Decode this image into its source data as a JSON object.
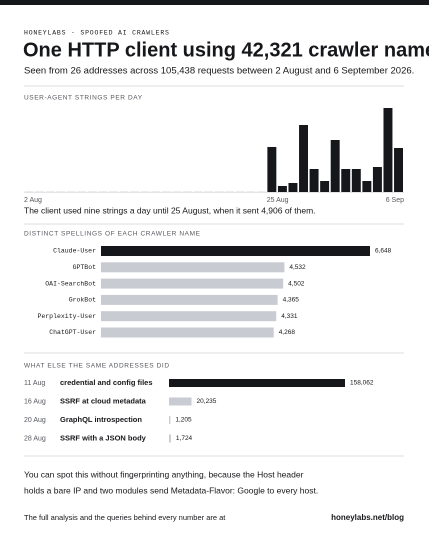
{
  "header": {
    "kicker": "HONEYLABS · SPOOFED AI CRAWLERS",
    "title": "One HTTP client using 42,321 crawler names",
    "subtitle": "Seen from 26 addresses across 105,438 requests between 2 August and 6 September 2026."
  },
  "chart_data": [
    {
      "type": "bar",
      "title": "USER-AGENT STRINGS PER DAY",
      "categories": [
        "2 Aug",
        null,
        null,
        null,
        null,
        null,
        null,
        null,
        null,
        null,
        null,
        null,
        null,
        null,
        null,
        null,
        null,
        null,
        null,
        null,
        null,
        null,
        null,
        "25 Aug",
        null,
        null,
        null,
        null,
        null,
        null,
        null,
        null,
        null,
        null,
        null,
        "6 Sep"
      ],
      "values": [
        9,
        9,
        9,
        9,
        9,
        9,
        9,
        9,
        9,
        9,
        9,
        9,
        9,
        9,
        9,
        9,
        9,
        9,
        9,
        9,
        9,
        9,
        9,
        4906,
        654,
        981,
        7303,
        2507,
        1199,
        5668,
        2507,
        2507,
        1199,
        2725,
        9156,
        4796
      ],
      "color": "#16171a",
      "caption": "The client used nine strings a day until 25 August, when it sent 4,906 of them."
    },
    {
      "type": "hbar",
      "title": "DISTINCT SPELLINGS OF EACH CRAWLER NAME",
      "categories": [
        "Claude-User",
        "GPTBot",
        "OAI-SearchBot",
        "GrokBot",
        "Perplexity-User",
        "ChatGPT-User"
      ],
      "values": [
        6648,
        4532,
        4502,
        4365,
        4331,
        4268
      ],
      "value_labels": [
        "6,648",
        "4,532",
        "4,502",
        "4,365",
        "4,331",
        "4,268"
      ],
      "colors": [
        "#16171a",
        "#c8cbd2",
        "#c8cbd2",
        "#c8cbd2",
        "#c8cbd2",
        "#c8cbd2"
      ]
    },
    {
      "type": "activity",
      "title": "WHAT ELSE THE SAME ADDRESSES DID",
      "dates": [
        "11 Aug",
        "16 Aug",
        "20 Aug",
        "28 Aug"
      ],
      "categories": [
        "credential and config files",
        "SSRF at cloud metadata",
        "GraphQL introspection",
        "SSRF with a JSON body"
      ],
      "values": [
        158062,
        20235,
        1205,
        1724
      ],
      "value_labels": [
        "158,062",
        "20,235",
        "1,205",
        "1,724"
      ],
      "colors": [
        "#16171a",
        "#c8cbd2",
        "#c8cbd2",
        "#c8cbd2"
      ]
    }
  ],
  "footer": {
    "note_line1": "You can spot this without fingerprinting anything, because the Host header",
    "note_line2": "holds a bare IP and two modules send Metadata-Flavor: Google to every host.",
    "more": "The full analysis and the queries behind every number are at",
    "link": "honeylabs.net/blog"
  }
}
